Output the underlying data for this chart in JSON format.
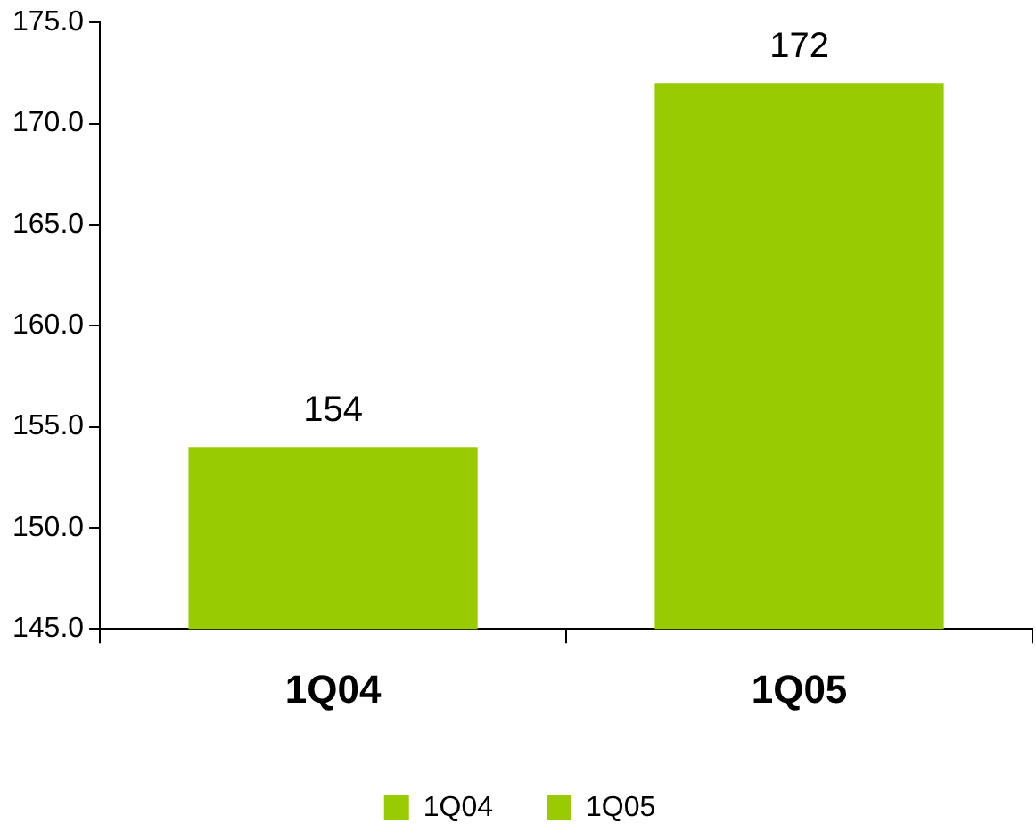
{
  "chart_data": {
    "type": "bar",
    "categories": [
      "1Q04",
      "1Q05"
    ],
    "series": [
      {
        "name": "1Q04",
        "color": "#99cc00",
        "values": [
          154,
          null
        ]
      },
      {
        "name": "1Q05",
        "color": "#99cc00",
        "values": [
          null,
          172
        ]
      }
    ],
    "ylim": [
      145,
      175
    ],
    "yticks": [
      {
        "value": 145,
        "label": "145.0"
      },
      {
        "value": 150,
        "label": "150.0"
      },
      {
        "value": 155,
        "label": "155.0"
      },
      {
        "value": 160,
        "label": "160.0"
      },
      {
        "value": 165,
        "label": "165.0"
      },
      {
        "value": 170,
        "label": "170.0"
      },
      {
        "value": 175,
        "label": "175.0"
      }
    ],
    "grid": false,
    "legend": "bottom",
    "data_labels": true
  }
}
